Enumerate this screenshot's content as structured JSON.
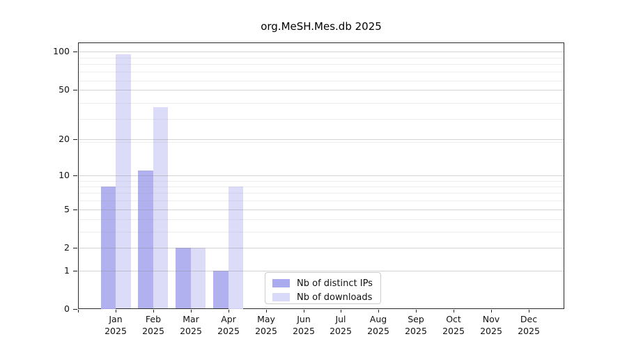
{
  "title": "org.MeSH.Mes.db 2025",
  "chart_data": {
    "type": "bar",
    "title": "org.MeSH.Mes.db 2025",
    "categories": [
      "Jan",
      "Feb",
      "Mar",
      "Apr",
      "May",
      "Jun",
      "Jul",
      "Aug",
      "Sep",
      "Oct",
      "Nov",
      "Dec"
    ],
    "x_year": "2025",
    "series": [
      {
        "name": "Nb of distinct IPs",
        "color": "#aaaaee",
        "values": [
          8,
          11,
          2,
          1,
          0,
          0,
          0,
          0,
          0,
          0,
          0,
          0
        ]
      },
      {
        "name": "Nb of downloads",
        "color": "#d9d9f8",
        "values": [
          95,
          36,
          2,
          8,
          0,
          0,
          0,
          0,
          0,
          0,
          0,
          0
        ]
      }
    ],
    "y_axis": {
      "scale": "log1p",
      "ticks": [
        0,
        1,
        2,
        5,
        10,
        20,
        50,
        100
      ],
      "range": [
        0,
        117
      ]
    },
    "xlabel": "",
    "ylabel": "",
    "grid": "horizontal",
    "legend_position": "lower center"
  }
}
